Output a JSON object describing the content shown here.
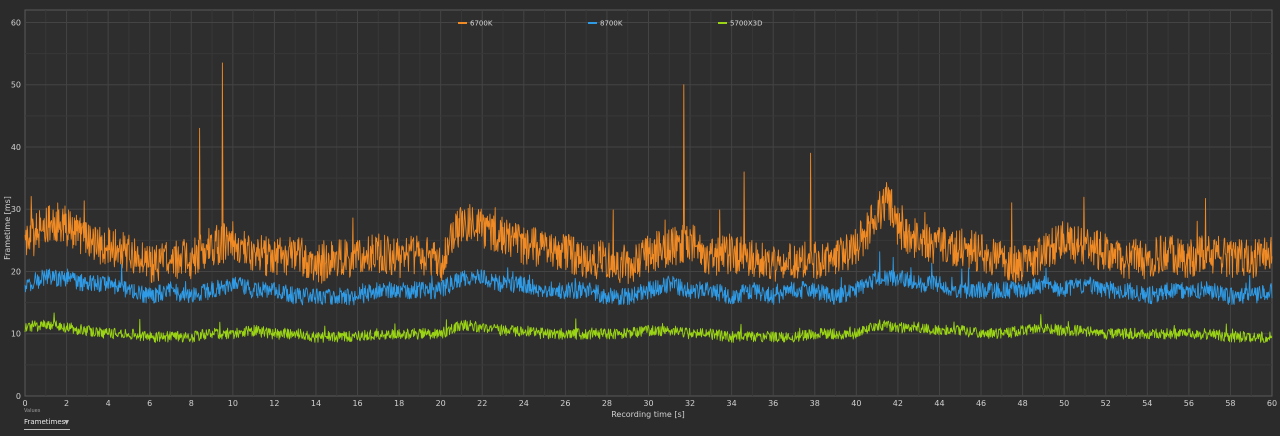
{
  "chart_data": {
    "type": "line",
    "title": "",
    "xlabel": "Recording time [s]",
    "ylabel": "Frametime [ms]",
    "xlim": [
      0,
      60
    ],
    "ylim": [
      0,
      62
    ],
    "xticks": [
      0,
      2,
      4,
      6,
      8,
      10,
      12,
      14,
      16,
      18,
      20,
      22,
      24,
      26,
      28,
      30,
      32,
      34,
      36,
      38,
      40,
      42,
      44,
      46,
      48,
      50,
      52,
      54,
      56,
      58,
      60
    ],
    "yticks": [
      0,
      10,
      20,
      30,
      40,
      50,
      60
    ],
    "grid": true,
    "legend_position": "top-center",
    "series": [
      {
        "name": "6700K",
        "color": "#f08a24",
        "x": [
          0,
          1,
          2,
          3,
          4,
          5,
          6,
          7,
          8,
          8.4,
          9,
          9.5,
          10,
          11,
          12,
          13,
          14,
          15,
          16,
          17,
          18,
          19,
          20,
          21,
          22,
          23,
          24,
          25,
          26,
          27,
          28,
          29,
          30,
          31,
          31.7,
          32,
          33,
          34,
          34.6,
          35,
          36,
          37,
          37.8,
          38,
          39,
          40,
          41,
          41.5,
          42,
          43,
          44,
          45,
          46,
          47,
          48,
          49,
          50,
          51,
          52,
          53,
          54,
          55,
          56,
          57,
          58,
          59,
          60
        ],
        "values": [
          24,
          28,
          27,
          25,
          24,
          23,
          21,
          22,
          22,
          43,
          24,
          53.5,
          25,
          23,
          22,
          23,
          21,
          22,
          22,
          23,
          22,
          23,
          21,
          28,
          27,
          26,
          24,
          24,
          23,
          22,
          22,
          21,
          23,
          24,
          50,
          25,
          22,
          23,
          36,
          22,
          21,
          22,
          39,
          22,
          22,
          24,
          29,
          32,
          27,
          25,
          24,
          24,
          23,
          22,
          21,
          23,
          25,
          24,
          23,
          22,
          22,
          23,
          22,
          23,
          22,
          22,
          23
        ]
      },
      {
        "name": "8700K",
        "color": "#2f9be6",
        "x": [
          0,
          1,
          2,
          3,
          4,
          5,
          6,
          7,
          8,
          9,
          10,
          11,
          12,
          13,
          14,
          15,
          16,
          17,
          18,
          19,
          20,
          21,
          22,
          23,
          24,
          25,
          26,
          27,
          28,
          29,
          30,
          31,
          32,
          33,
          34,
          35,
          36,
          37,
          38,
          39,
          40,
          41,
          42,
          43,
          44,
          45,
          46,
          47,
          48,
          49,
          50,
          51,
          52,
          53,
          54,
          55,
          56,
          57,
          58,
          59,
          60
        ],
        "values": [
          18,
          19,
          19,
          18,
          18,
          17,
          16,
          17,
          16,
          17,
          18,
          17,
          17,
          16,
          16,
          16,
          16,
          17,
          17,
          17,
          17,
          19,
          19,
          18,
          18,
          17,
          17,
          17,
          16,
          16,
          17,
          18,
          17,
          17,
          16,
          17,
          16,
          17,
          17,
          16,
          17,
          19,
          19,
          18,
          18,
          17,
          17,
          17,
          17,
          18,
          17,
          18,
          17,
          17,
          16,
          17,
          17,
          17,
          16,
          16,
          17
        ]
      },
      {
        "name": "5700X3D",
        "color": "#9ad414",
        "x": [
          0,
          1,
          2,
          3,
          4,
          5,
          6,
          7,
          8,
          9,
          10,
          11,
          12,
          13,
          14,
          15,
          16,
          17,
          18,
          19,
          20,
          21,
          22,
          23,
          24,
          25,
          26,
          27,
          28,
          29,
          30,
          31,
          32,
          33,
          34,
          35,
          36,
          37,
          38,
          39,
          40,
          41,
          42,
          43,
          44,
          45,
          46,
          47,
          48,
          49,
          50,
          51,
          52,
          53,
          54,
          55,
          56,
          57,
          58,
          59,
          60
        ],
        "values": [
          11,
          11.5,
          11,
          10.5,
          10,
          10,
          9.5,
          9.5,
          9.5,
          10,
          10,
          10.5,
          10,
          10,
          9.5,
          9.5,
          9.5,
          10,
          10,
          10,
          10,
          11.5,
          11,
          10.5,
          10.5,
          10,
          10,
          10,
          10,
          10,
          10.5,
          10.5,
          10,
          10,
          9.5,
          9.5,
          9.5,
          9.5,
          10,
          10,
          10,
          11.5,
          11,
          11,
          10.5,
          10.5,
          10,
          10,
          10.5,
          11,
          10.5,
          10.5,
          10,
          10,
          10,
          10,
          10,
          10,
          9.5,
          9.5,
          9.5
        ]
      }
    ]
  },
  "controls": {
    "values_caption": "Values",
    "values_selected": "Frametimes"
  }
}
